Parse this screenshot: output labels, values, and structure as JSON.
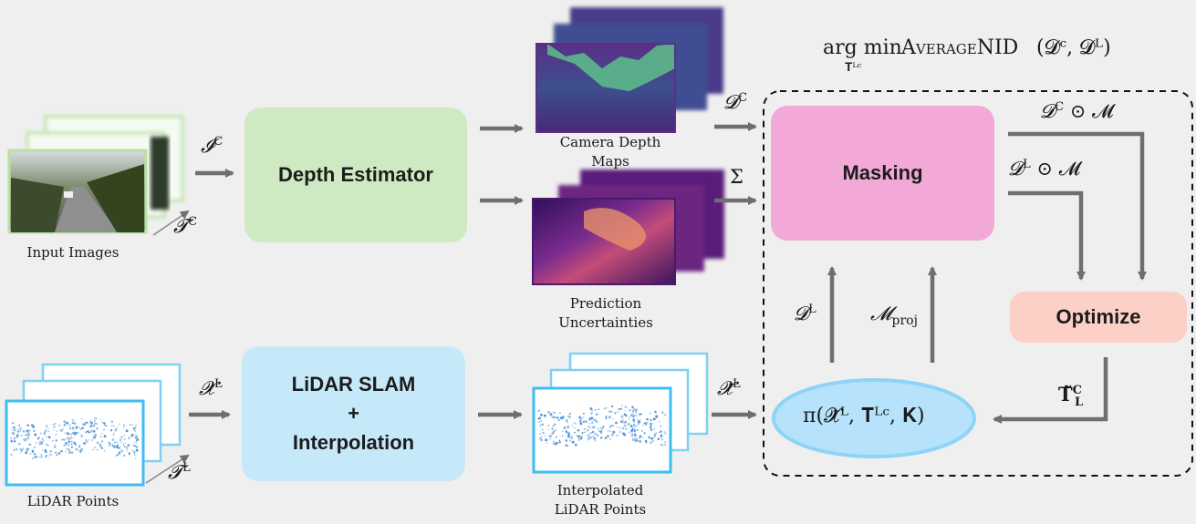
{
  "captions": {
    "input_images": "Input Images",
    "camera_depth": "Camera Depth Maps",
    "prediction_unc": "Prediction Uncertainties",
    "lidar_points": "LiDAR Points",
    "interp_points": "Interpolated LiDAR Points"
  },
  "blocks": {
    "depth_estimator": "Depth Estimator",
    "lidar_slam_line1": "LiDAR SLAM",
    "lidar_slam_line2": "+",
    "lidar_slam_line3": "Interpolation",
    "masking": "Masking",
    "optimize": "Optimize"
  },
  "math": {
    "I_C": "𝓘",
    "I_C_sup": "C",
    "T_C": "𝓣",
    "T_C_sup": "C",
    "X_L": "𝓧",
    "X_L_sup": "L",
    "T_L": "𝓣",
    "T_L_sup": "L",
    "D_C": "𝓓",
    "D_C_sup": "C",
    "Sigma": "Σ",
    "Xt_L": "𝓧̃",
    "Xt_L_sup": "L",
    "DC_M": "𝓓",
    "DC_M_sup": "C",
    "DC_M_rest": " ⊙ 𝓜",
    "DL_M": "𝓓",
    "DL_M_sup": "L",
    "DL_M_rest": " ⊙ 𝓜",
    "D_L": "𝓓",
    "D_L_sup": "L",
    "M_proj": "𝓜",
    "M_proj_sub": "proj",
    "T_hat": "𝐓̃",
    "T_hat_sup": "C",
    "T_hat_sub": "L",
    "pi_expr": "π(𝓧̃ᴸ, 𝐓̃ᴸᶜ, 𝐊)",
    "objective_pre": "arg min",
    "objective_sub": "𝐓̃ᴸᶜ",
    "objective_fn": "AverageNID",
    "objective_args": "(𝓓ᶜ, 𝓓ᴸ)"
  },
  "colors": {
    "depth_estimator": "#cfe9c3",
    "lidar_slam": "#c6e9fa",
    "masking": "#f2a9d7",
    "optimize": "#fcd0c6",
    "pi_ellipse": "#b6e3fb",
    "pi_ellipse_border": "#8fd3f7",
    "arrow": "#6f6f6f",
    "image_frame": "#b7e2a2",
    "lidar_frame": "#7fd0f5"
  }
}
